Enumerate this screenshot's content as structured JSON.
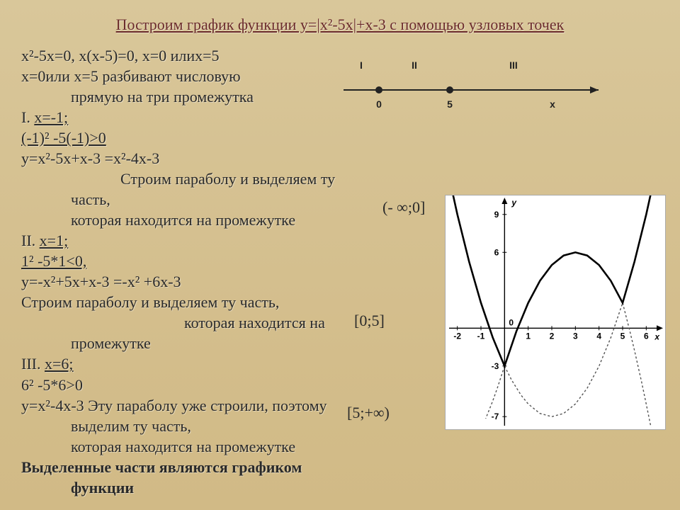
{
  "title": "Построим график функции y=|x²-5x|+x-3 с помощью узловых точек",
  "lines": {
    "l1": "x²-5x=0, x(x-5)=0, x=0 илиx=5",
    "l2": "x=0или x=5 разбивают числовую",
    "l2b": "прямую на три промежутка",
    "l3a": "I. ",
    "l3b": "x=-1;",
    "l4": " (-1)² -5(-1)>0",
    "l5": " y=x²-5x+x-3 =x²-4x-3",
    "l5b": "Строим параболу и выделяем ту",
    "l5c": "часть,",
    "l5d": " которая находится на промежутке",
    "l6a": "II. ",
    "l6b": "x=1;",
    "l7": " 1² -5*1<0,",
    "l8": "y=-x²+5x+x-3 =-x² +6x-3",
    "l9": "Строим параболу и выделяем ту часть,",
    "l9b": "которая находится на",
    "l9c": "промежутке",
    "l10a": " III. ",
    "l10b": "x=6;",
    "l11": "6² -5*6>0",
    "l12": "y=x²-4x-3 Эту параболу уже строили, поэтому",
    "l12b": "выделим ту часть,",
    "l12c": "которая находится на промежутке",
    "l13": "Выделенные части являются графиком",
    "l13b": "функции"
  },
  "intervals": {
    "i1": "(- ∞;0]",
    "i2": "[0;5]",
    "i3": "[5;+∞)"
  },
  "numberLine": {
    "regions": [
      "I",
      "II",
      "III"
    ],
    "ticks": [
      "0",
      "5",
      "x"
    ],
    "lineColor": "#222222",
    "dotColor": "#222222",
    "textColor": "#222222"
  },
  "graph": {
    "type": "line",
    "background_color": "#ffffff",
    "axis_color": "#000000",
    "main_color": "#000000",
    "dashed_color": "#555555",
    "xlim": [
      -2.5,
      6.8
    ],
    "ylim": [
      -8,
      10.5
    ],
    "xticks": [
      -2,
      -1,
      1,
      2,
      3,
      4,
      5,
      6
    ],
    "yticks": [
      -7,
      -3,
      6,
      9
    ],
    "ylabel": "y",
    "xlabel": "x",
    "origin_label": "0",
    "main_stroke_width": 2.6,
    "dashed_stroke_width": 1.4,
    "dash_pattern": "3 3",
    "tick_fontsize": 12,
    "series_main": [
      {
        "x": -2.4,
        "y": 12.4
      },
      {
        "x": -2,
        "y": 9
      },
      {
        "x": -1.5,
        "y": 5.25
      },
      {
        "x": -1,
        "y": 2
      },
      {
        "x": -0.5,
        "y": -0.75
      },
      {
        "x": 0,
        "y": -3
      },
      {
        "x": 0.5,
        "y": -0.25
      },
      {
        "x": 1,
        "y": 2
      },
      {
        "x": 1.5,
        "y": 3.75
      },
      {
        "x": 2,
        "y": 5
      },
      {
        "x": 2.5,
        "y": 5.75
      },
      {
        "x": 3,
        "y": 6
      },
      {
        "x": 3.5,
        "y": 5.75
      },
      {
        "x": 4,
        "y": 5
      },
      {
        "x": 4.5,
        "y": 3.75
      },
      {
        "x": 5,
        "y": 2
      },
      {
        "x": 5.5,
        "y": 5.25
      },
      {
        "x": 6,
        "y": 9
      },
      {
        "x": 6.4,
        "y": 12.4
      }
    ],
    "series_dashed_left": [
      {
        "x": 0,
        "y": -3
      },
      {
        "x": 0.3,
        "y": -4.11
      },
      {
        "x": 0.7,
        "y": -5.31
      },
      {
        "x": 1,
        "y": -6
      },
      {
        "x": 1.5,
        "y": -6.75
      },
      {
        "x": 2,
        "y": -7
      },
      {
        "x": 2.5,
        "y": -6.75
      },
      {
        "x": 3,
        "y": -6
      },
      {
        "x": 3.5,
        "y": -4.75
      },
      {
        "x": 4,
        "y": -3
      },
      {
        "x": 4.5,
        "y": -0.75
      },
      {
        "x": 5,
        "y": 2
      }
    ],
    "series_dashed_right": [
      {
        "x": 5,
        "y": 2
      },
      {
        "x": 5.3,
        "y": -0.19
      },
      {
        "x": 5.5,
        "y": -1.75
      },
      {
        "x": 5.8,
        "y": -4.24
      },
      {
        "x": 6,
        "y": -6
      },
      {
        "x": 6.2,
        "y": -7.84
      }
    ],
    "series_dashed_left2": [
      {
        "x": 0,
        "y": -3
      },
      {
        "x": -0.3,
        "y": -4.71
      },
      {
        "x": -0.5,
        "y": -5.75
      },
      {
        "x": -0.8,
        "y": -7.16
      }
    ]
  }
}
